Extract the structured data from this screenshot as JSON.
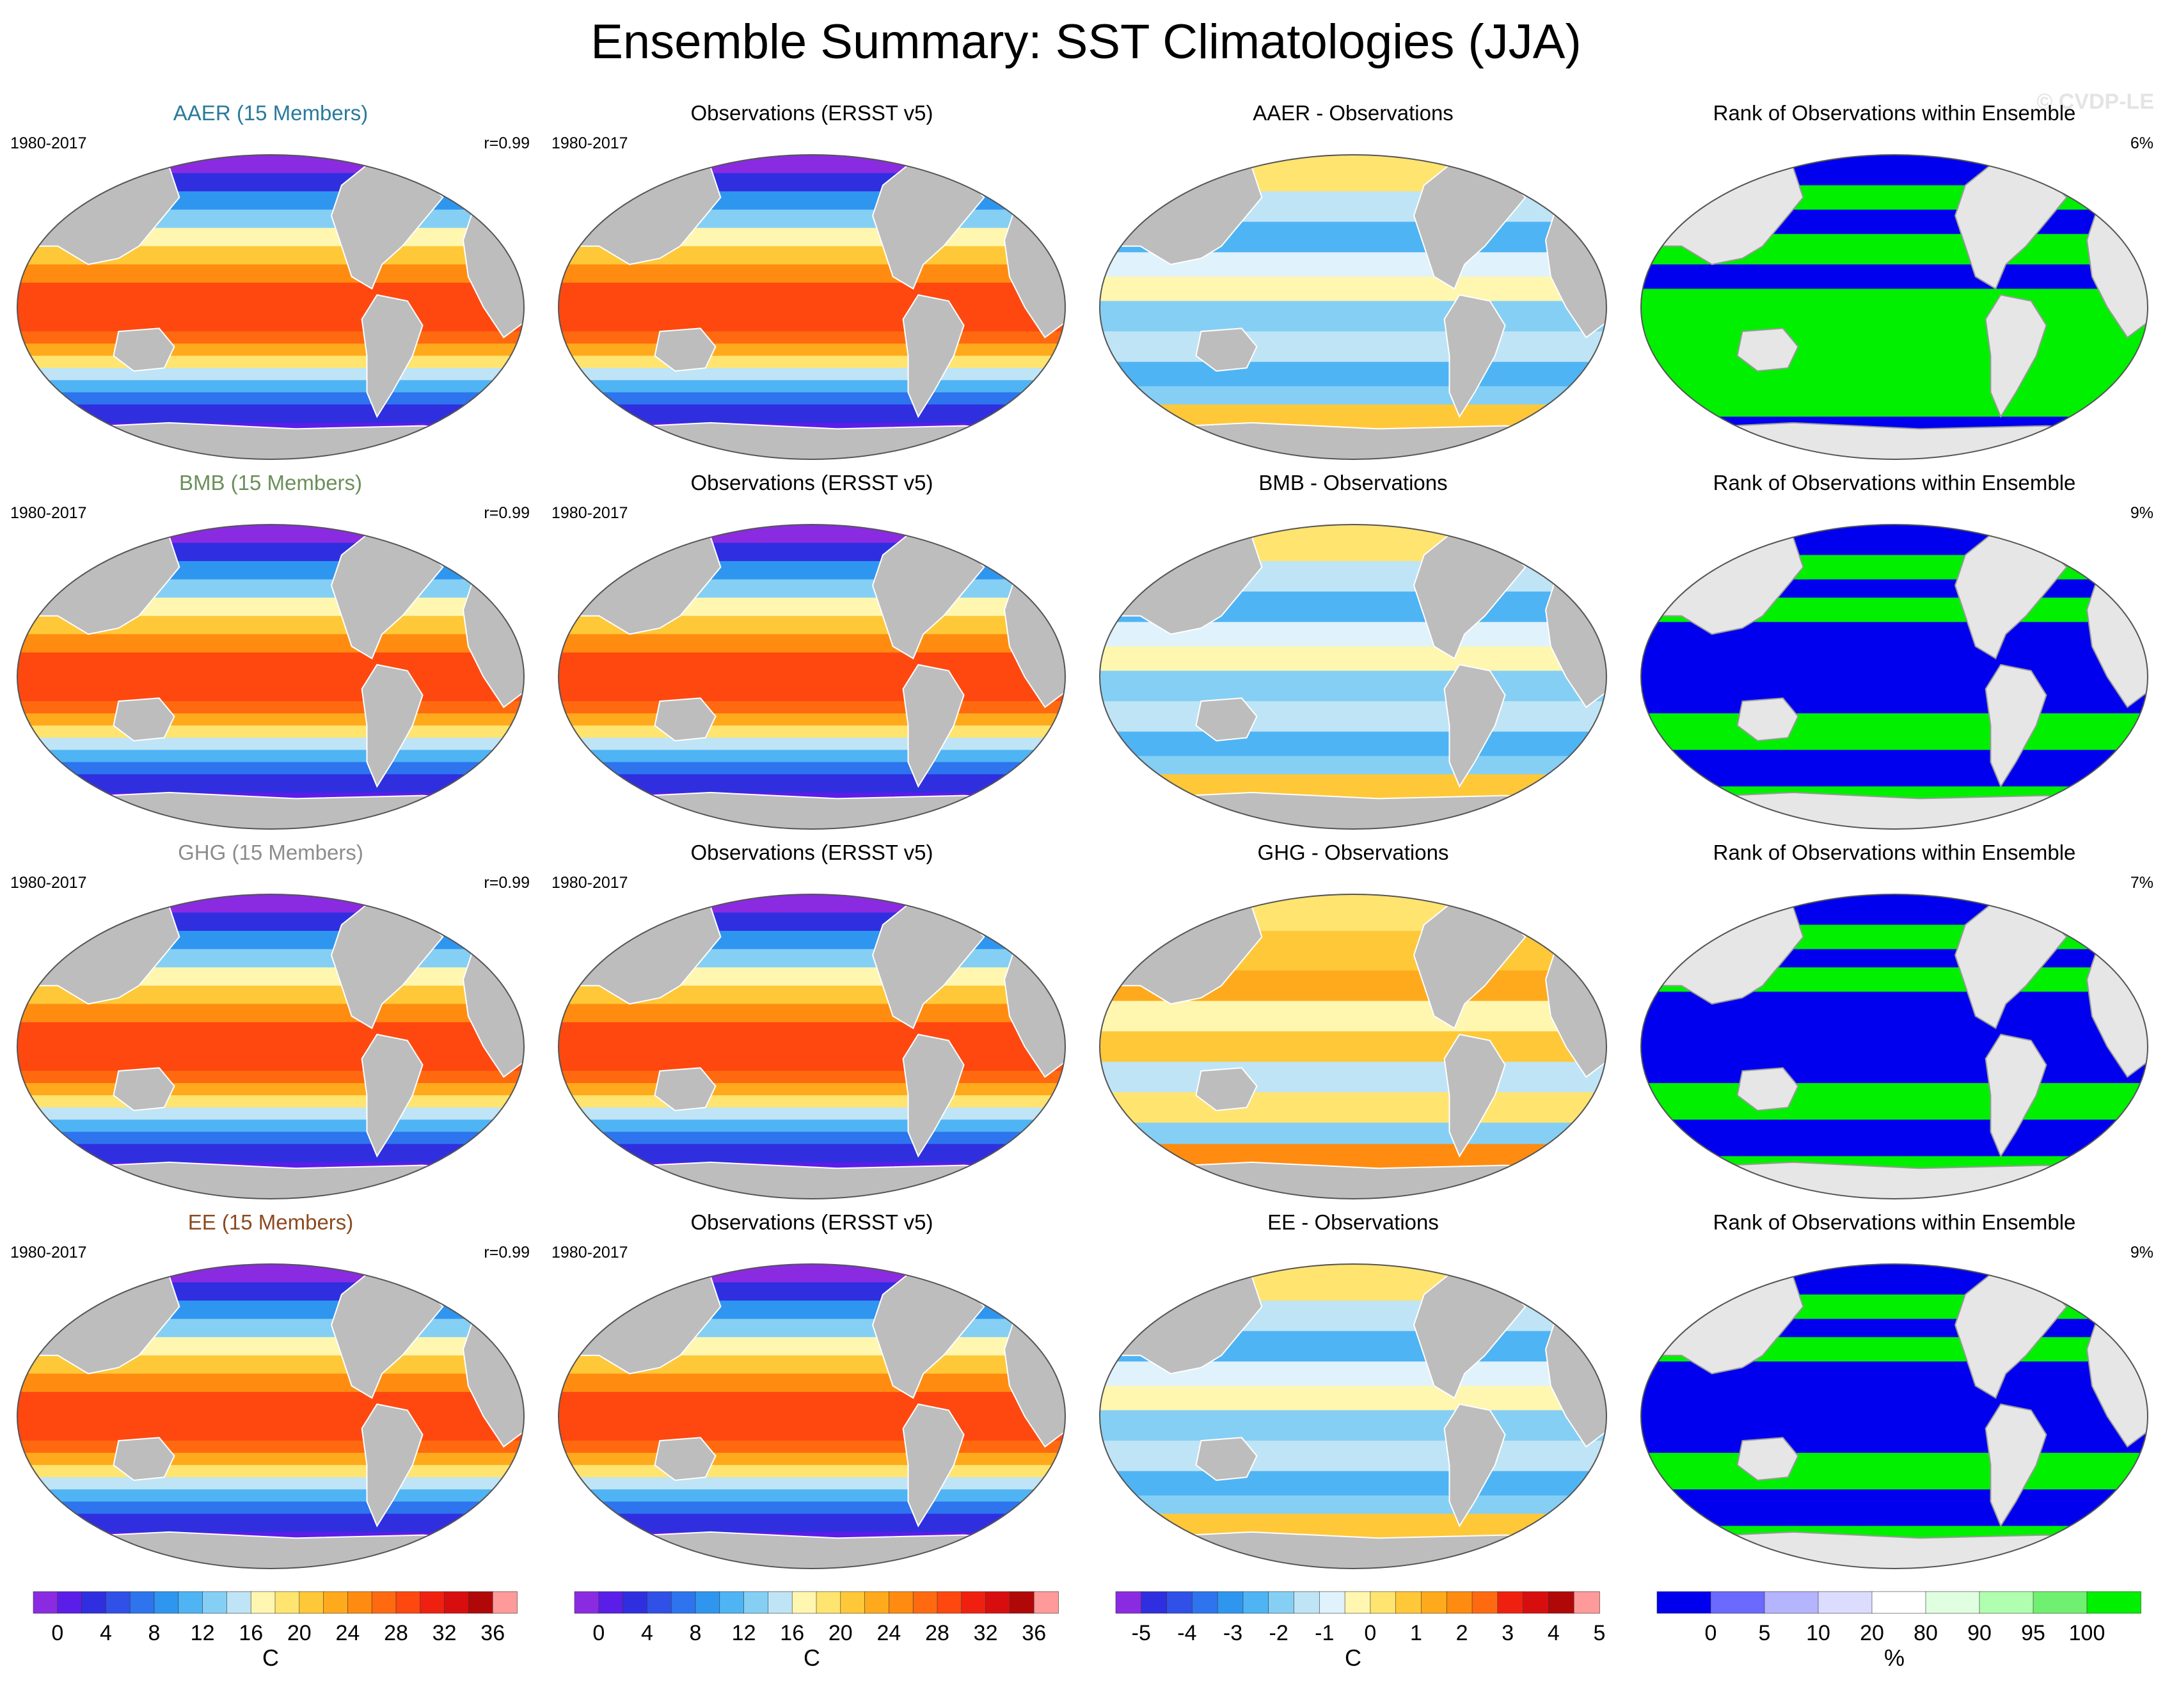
{
  "title": "Ensemble Summary: SST Climatologies (JJA)",
  "watermark": "© CVDP-LE",
  "rows": [
    {
      "model": {
        "title": "AAER (15 Members)",
        "title_color": "#2a7a9c",
        "period": "1980-2017",
        "corr": "r=0.99"
      },
      "obs": {
        "title": "Observations (ERSST v5)",
        "period": "1980-2017"
      },
      "diff": {
        "title": "AAER - Observations"
      },
      "rank": {
        "title": "Rank of Observations within Ensemble",
        "pct": "6%"
      }
    },
    {
      "model": {
        "title": "BMB (15 Members)",
        "title_color": "#6b8f5a",
        "period": "1980-2017",
        "corr": "r=0.99"
      },
      "obs": {
        "title": "Observations (ERSST v5)",
        "period": "1980-2017"
      },
      "diff": {
        "title": "BMB - Observations"
      },
      "rank": {
        "title": "Rank of Observations within Ensemble",
        "pct": "9%"
      }
    },
    {
      "model": {
        "title": "GHG (15 Members)",
        "title_color": "#8c8c8c",
        "period": "1980-2017",
        "corr": "r=0.99"
      },
      "obs": {
        "title": "Observations (ERSST v5)",
        "period": "1980-2017"
      },
      "diff": {
        "title": "GHG - Observations"
      },
      "rank": {
        "title": "Rank of Observations within Ensemble",
        "pct": "7%"
      }
    },
    {
      "model": {
        "title": "EE (15 Members)",
        "title_color": "#8b4a20",
        "period": "1980-2017",
        "corr": "r=0.99"
      },
      "obs": {
        "title": "Observations (ERSST v5)",
        "period": "1980-2017"
      },
      "diff": {
        "title": "EE - Observations"
      },
      "rank": {
        "title": "Rank of Observations within Ensemble",
        "pct": "9%"
      }
    }
  ],
  "colorbars": [
    {
      "name": "sst",
      "unit": "C",
      "labels": [
        "0",
        "4",
        "8",
        "12",
        "16",
        "20",
        "24",
        "28",
        "32",
        "36"
      ],
      "colors": [
        "#8a2be2",
        "#5a1ee8",
        "#2f2fe0",
        "#3050e8",
        "#2e74ee",
        "#2f96f0",
        "#4fb4f4",
        "#86cff4",
        "#bfe4f6",
        "#fff6b0",
        "#ffe470",
        "#ffc838",
        "#ffaa1c",
        "#ff8c10",
        "#ff6a10",
        "#ff4810",
        "#f02010",
        "#d80e0e",
        "#b00808",
        "#ff9a9a"
      ]
    },
    {
      "name": "sst-obs",
      "unit": "C",
      "labels": [
        "0",
        "4",
        "8",
        "12",
        "16",
        "20",
        "24",
        "28",
        "32",
        "36"
      ],
      "colors": [
        "#8a2be2",
        "#5a1ee8",
        "#2f2fe0",
        "#3050e8",
        "#2e74ee",
        "#2f96f0",
        "#4fb4f4",
        "#86cff4",
        "#bfe4f6",
        "#fff6b0",
        "#ffe470",
        "#ffc838",
        "#ffaa1c",
        "#ff8c10",
        "#ff6a10",
        "#ff4810",
        "#f02010",
        "#d80e0e",
        "#b00808",
        "#ff9a9a"
      ]
    },
    {
      "name": "diff",
      "unit": "C",
      "labels": [
        "-5",
        "-4",
        "-3",
        "-2",
        "-1",
        "0",
        "1",
        "2",
        "3",
        "4",
        "5"
      ],
      "colors": [
        "#8a2be2",
        "#2f2fe0",
        "#3050e8",
        "#2e74ee",
        "#2f96f0",
        "#4fb4f4",
        "#86cff4",
        "#bfe4f6",
        "#e0f2fb",
        "#fff6b0",
        "#ffe470",
        "#ffc838",
        "#ffaa1c",
        "#ff8c10",
        "#ff6a10",
        "#f02010",
        "#d80e0e",
        "#b00808",
        "#ff9a9a"
      ]
    },
    {
      "name": "rank",
      "unit": "%",
      "labels": [
        "0",
        "5",
        "10",
        "20",
        "80",
        "90",
        "95",
        "100"
      ],
      "colors": [
        "#0000ee",
        "#6a6aff",
        "#b4b4ff",
        "#dcdcff",
        "#ffffff",
        "#e0ffe0",
        "#b0ffb0",
        "#70f070",
        "#00f000"
      ]
    }
  ]
}
